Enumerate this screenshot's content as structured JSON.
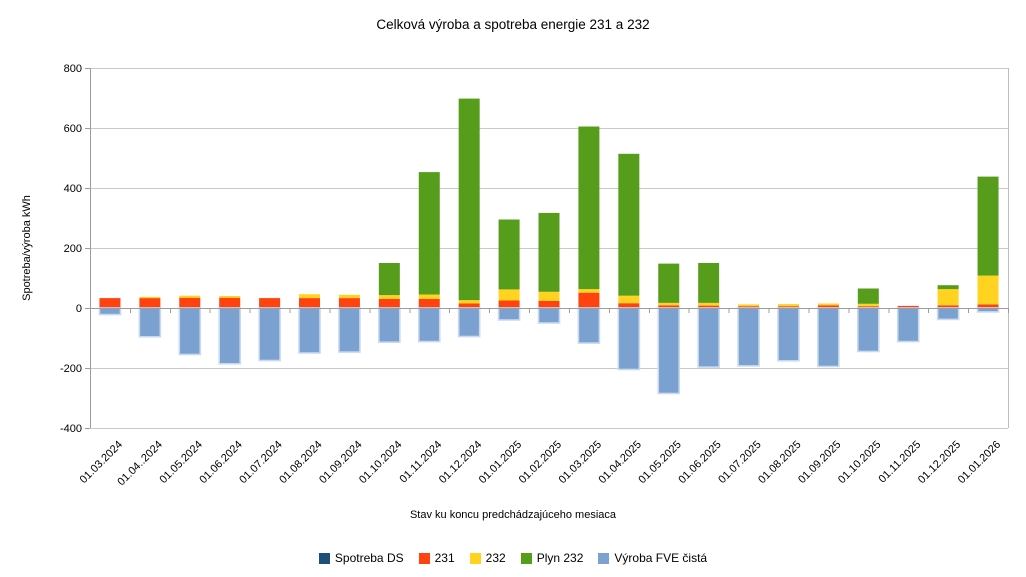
{
  "chart_data": {
    "type": "bar",
    "stacked": true,
    "title": "Celková výroba a spotreba energie 231 a 232",
    "xlabel": "Stav ku koncu predchádzajúceho mesiaca",
    "ylabel": "Spotreba/výroba kWh",
    "ylim": [
      -400,
      800
    ],
    "ytick_step": 200,
    "grid": true,
    "legend_position": "bottom",
    "categories": [
      "01.03.2024",
      "01.04..2024",
      "01.05.2024",
      "01.06.2024",
      "01.07.2024",
      "01.08.2024",
      "01.09.2024",
      "01.10.2024",
      "01.11.2024",
      "01.12.2024",
      "01.01.2025",
      "01.02.2025",
      "01.03.2025",
      "01.04.2025",
      "01.05.2025",
      "01.06.2025",
      "01.07.2025",
      "01.08.2025",
      "01.09.2025",
      "01.10.2025",
      "01.11.2025",
      "01.12.2025",
      "01.01.2026"
    ],
    "series": [
      {
        "name": "Spotreba DS",
        "color": "#1F4E79",
        "values": [
          0,
          0,
          0,
          0,
          0,
          0,
          0,
          0,
          0,
          0,
          0,
          0,
          0,
          0,
          0,
          0,
          0,
          0,
          0,
          0,
          0,
          0,
          0
        ]
      },
      {
        "name": "231",
        "color": "#FF420E",
        "values": [
          33,
          33,
          34,
          34,
          33,
          33,
          33,
          30,
          30,
          15,
          25,
          24,
          51,
          16,
          9,
          8,
          6,
          6,
          9,
          6,
          7,
          9,
          12
        ]
      },
      {
        "name": "232",
        "color": "#FFD320",
        "values": [
          0,
          4,
          7,
          6,
          0,
          13,
          11,
          13,
          15,
          11,
          37,
          30,
          12,
          25,
          8,
          9,
          6,
          7,
          6,
          8,
          0,
          54,
          96
        ]
      },
      {
        "name": "Plyn 232",
        "color": "#579D1C",
        "values": [
          0,
          0,
          0,
          0,
          0,
          0,
          0,
          107,
          408,
          672,
          233,
          263,
          542,
          473,
          131,
          133,
          0,
          0,
          0,
          51,
          0,
          13,
          330
        ]
      },
      {
        "name": "Výroba FVE čistá",
        "color": "#7AA1D0",
        "border_color": "#C9DAF0",
        "values": [
          -22,
          -96,
          -155,
          -186,
          -175,
          -150,
          -147,
          -114,
          -112,
          -95,
          -40,
          -50,
          -117,
          -205,
          -285,
          -197,
          -193,
          -176,
          -195,
          -145,
          -112,
          -38,
          -13
        ]
      }
    ]
  }
}
